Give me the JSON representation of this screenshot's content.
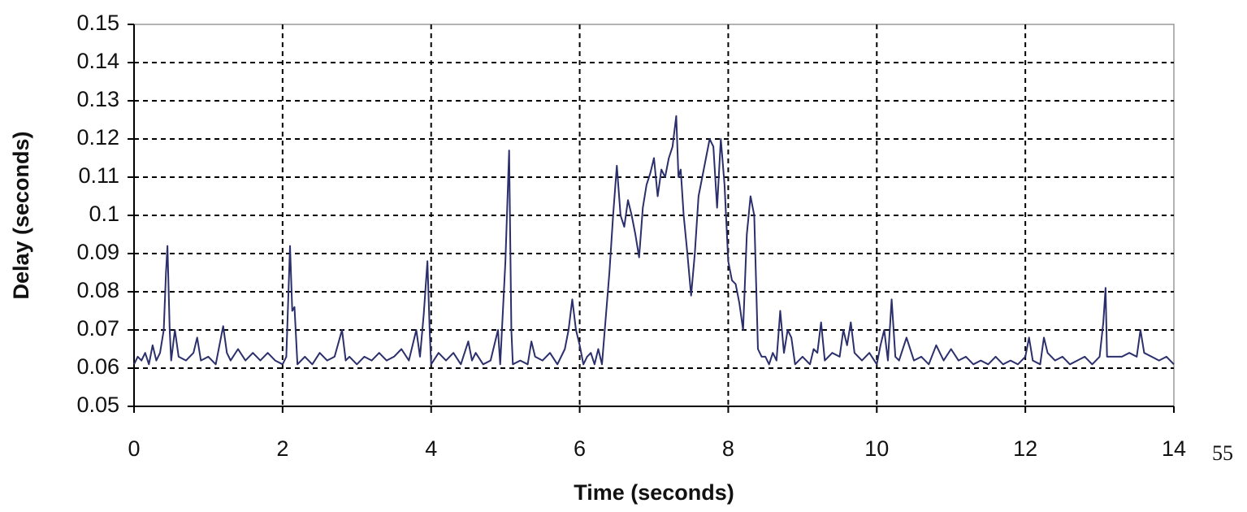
{
  "chart_data": {
    "type": "line",
    "x_label": "Time (seconds)",
    "y_label": "Delay (seconds)",
    "page_number": "55",
    "color": "#2b2f6b",
    "grid": true,
    "xlim": [
      0,
      14
    ],
    "xticks": [
      0,
      2,
      4,
      6,
      8,
      10,
      12,
      14
    ],
    "ylim": [
      0.05,
      0.15
    ],
    "yticks": [
      0.05,
      0.06,
      0.07,
      0.08,
      0.09,
      0.1,
      0.11,
      0.12,
      0.13,
      0.14,
      0.15
    ],
    "x": [
      0,
      0.05,
      0.1,
      0.15,
      0.2,
      0.25,
      0.3,
      0.35,
      0.4,
      0.43,
      0.45,
      0.48,
      0.5,
      0.55,
      0.6,
      0.7,
      0.8,
      0.85,
      0.9,
      1.0,
      1.1,
      1.15,
      1.2,
      1.25,
      1.3,
      1.4,
      1.5,
      1.6,
      1.7,
      1.8,
      1.9,
      2.0,
      2.05,
      2.1,
      2.13,
      2.16,
      2.2,
      2.3,
      2.4,
      2.5,
      2.6,
      2.7,
      2.8,
      2.85,
      2.9,
      3.0,
      3.1,
      3.2,
      3.3,
      3.4,
      3.5,
      3.6,
      3.7,
      3.8,
      3.85,
      3.9,
      3.95,
      3.98,
      4.0,
      4.1,
      4.2,
      4.3,
      4.4,
      4.5,
      4.55,
      4.6,
      4.7,
      4.8,
      4.9,
      4.93,
      5.0,
      5.05,
      5.08,
      5.1,
      5.2,
      5.3,
      5.35,
      5.4,
      5.5,
      5.6,
      5.7,
      5.8,
      5.85,
      5.9,
      5.95,
      6.0,
      6.05,
      6.1,
      6.15,
      6.2,
      6.25,
      6.3,
      6.35,
      6.4,
      6.45,
      6.5,
      6.55,
      6.6,
      6.65,
      6.7,
      6.75,
      6.8,
      6.85,
      6.9,
      6.95,
      7.0,
      7.05,
      7.1,
      7.15,
      7.2,
      7.25,
      7.3,
      7.33,
      7.36,
      7.4,
      7.45,
      7.5,
      7.55,
      7.6,
      7.65,
      7.7,
      7.75,
      7.8,
      7.85,
      7.9,
      7.95,
      8.0,
      8.05,
      8.1,
      8.15,
      8.2,
      8.25,
      8.3,
      8.35,
      8.4,
      8.45,
      8.5,
      8.55,
      8.6,
      8.65,
      8.7,
      8.75,
      8.8,
      8.85,
      8.9,
      9.0,
      9.1,
      9.15,
      9.2,
      9.25,
      9.3,
      9.4,
      9.5,
      9.55,
      9.6,
      9.65,
      9.7,
      9.8,
      9.9,
      10.0,
      10.05,
      10.1,
      10.15,
      10.2,
      10.25,
      10.3,
      10.4,
      10.5,
      10.6,
      10.7,
      10.8,
      10.9,
      11.0,
      11.1,
      11.2,
      11.3,
      11.4,
      11.5,
      11.6,
      11.7,
      11.8,
      11.9,
      12.0,
      12.05,
      12.1,
      12.2,
      12.25,
      12.3,
      12.4,
      12.5,
      12.6,
      12.7,
      12.8,
      12.9,
      13.0,
      13.05,
      13.08,
      13.1,
      13.2,
      13.3,
      13.4,
      13.5,
      13.55,
      13.6,
      13.7,
      13.8,
      13.9,
      14.0
    ],
    "values": [
      0.061,
      0.063,
      0.062,
      0.064,
      0.061,
      0.066,
      0.062,
      0.064,
      0.07,
      0.085,
      0.092,
      0.07,
      0.062,
      0.07,
      0.063,
      0.062,
      0.064,
      0.068,
      0.062,
      0.063,
      0.061,
      0.066,
      0.071,
      0.064,
      0.062,
      0.065,
      0.062,
      0.064,
      0.062,
      0.064,
      0.062,
      0.061,
      0.063,
      0.092,
      0.075,
      0.076,
      0.061,
      0.063,
      0.061,
      0.064,
      0.062,
      0.063,
      0.07,
      0.062,
      0.063,
      0.061,
      0.063,
      0.062,
      0.064,
      0.062,
      0.063,
      0.065,
      0.062,
      0.07,
      0.063,
      0.074,
      0.088,
      0.07,
      0.061,
      0.064,
      0.062,
      0.064,
      0.061,
      0.067,
      0.062,
      0.064,
      0.061,
      0.062,
      0.07,
      0.061,
      0.088,
      0.117,
      0.07,
      0.061,
      0.062,
      0.061,
      0.067,
      0.063,
      0.062,
      0.064,
      0.061,
      0.065,
      0.07,
      0.078,
      0.07,
      0.066,
      0.061,
      0.063,
      0.064,
      0.061,
      0.065,
      0.061,
      0.073,
      0.085,
      0.1,
      0.113,
      0.1,
      0.097,
      0.104,
      0.1,
      0.095,
      0.089,
      0.102,
      0.108,
      0.111,
      0.115,
      0.105,
      0.112,
      0.11,
      0.115,
      0.118,
      0.126,
      0.11,
      0.112,
      0.1,
      0.09,
      0.079,
      0.09,
      0.105,
      0.11,
      0.115,
      0.12,
      0.118,
      0.102,
      0.12,
      0.108,
      0.088,
      0.083,
      0.082,
      0.077,
      0.07,
      0.095,
      0.105,
      0.1,
      0.065,
      0.063,
      0.063,
      0.061,
      0.064,
      0.062,
      0.075,
      0.064,
      0.07,
      0.068,
      0.061,
      0.063,
      0.061,
      0.065,
      0.064,
      0.072,
      0.062,
      0.064,
      0.063,
      0.07,
      0.066,
      0.072,
      0.064,
      0.062,
      0.064,
      0.061,
      0.066,
      0.07,
      0.062,
      0.078,
      0.063,
      0.062,
      0.068,
      0.062,
      0.063,
      0.061,
      0.066,
      0.062,
      0.065,
      0.062,
      0.063,
      0.061,
      0.062,
      0.061,
      0.063,
      0.061,
      0.062,
      0.061,
      0.063,
      0.068,
      0.062,
      0.061,
      0.068,
      0.064,
      0.062,
      0.063,
      0.061,
      0.062,
      0.063,
      0.061,
      0.063,
      0.072,
      0.081,
      0.063,
      0.063,
      0.063,
      0.064,
      0.063,
      0.07,
      0.064,
      0.063,
      0.062,
      0.063,
      0.061
    ]
  }
}
